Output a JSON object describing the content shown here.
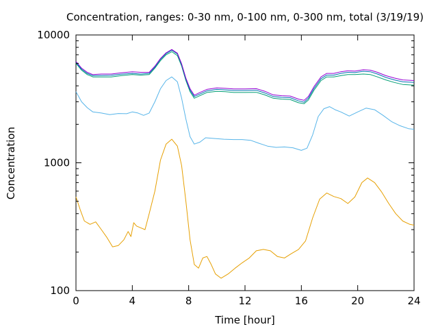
{
  "chart_data": {
    "type": "line",
    "title": "Concentration, ranges: 0-30 nm, 0-100 nm, 0-300 nm, total (3/19/19)",
    "xlabel": "Time [hour]",
    "ylabel": "Concentration",
    "xlim": [
      0,
      24
    ],
    "ylim": [
      100,
      10000
    ],
    "yscale": "log",
    "grid": false,
    "legend": "none",
    "x_ticks": [
      0,
      4,
      8,
      12,
      16,
      20,
      24
    ],
    "x_tick_labels": [
      "0",
      "4",
      "8",
      "12",
      "16",
      "20",
      "24"
    ],
    "y_ticks": [
      100,
      1000,
      10000
    ],
    "y_tick_labels": [
      "100",
      "1000",
      "10000"
    ],
    "series": [
      {
        "color": "#e69f00",
        "points": [
          [
            0,
            540
          ],
          [
            0.3,
            430
          ],
          [
            0.6,
            350
          ],
          [
            1,
            330
          ],
          [
            1.4,
            345
          ],
          [
            1.8,
            300
          ],
          [
            2.2,
            260
          ],
          [
            2.6,
            220
          ],
          [
            3,
            225
          ],
          [
            3.4,
            250
          ],
          [
            3.7,
            290
          ],
          [
            3.9,
            265
          ],
          [
            4.1,
            340
          ],
          [
            4.3,
            320
          ],
          [
            4.6,
            310
          ],
          [
            4.9,
            300
          ],
          [
            5.2,
            400
          ],
          [
            5.6,
            600
          ],
          [
            6,
            1050
          ],
          [
            6.4,
            1400
          ],
          [
            6.8,
            1530
          ],
          [
            7.2,
            1350
          ],
          [
            7.5,
            950
          ],
          [
            7.8,
            500
          ],
          [
            8.1,
            250
          ],
          [
            8.4,
            160
          ],
          [
            8.7,
            150
          ],
          [
            9,
            180
          ],
          [
            9.3,
            185
          ],
          [
            9.6,
            160
          ],
          [
            9.9,
            135
          ],
          [
            10.3,
            125
          ],
          [
            10.8,
            135
          ],
          [
            11.3,
            150
          ],
          [
            11.8,
            165
          ],
          [
            12.3,
            180
          ],
          [
            12.8,
            205
          ],
          [
            13.3,
            210
          ],
          [
            13.8,
            205
          ],
          [
            14.3,
            185
          ],
          [
            14.8,
            180
          ],
          [
            15.3,
            195
          ],
          [
            15.8,
            210
          ],
          [
            16.3,
            245
          ],
          [
            16.8,
            370
          ],
          [
            17.3,
            520
          ],
          [
            17.8,
            580
          ],
          [
            18.3,
            545
          ],
          [
            18.8,
            525
          ],
          [
            19.3,
            480
          ],
          [
            19.8,
            540
          ],
          [
            20.3,
            700
          ],
          [
            20.7,
            760
          ],
          [
            21.2,
            700
          ],
          [
            21.7,
            590
          ],
          [
            22.2,
            480
          ],
          [
            22.7,
            400
          ],
          [
            23.2,
            350
          ],
          [
            23.7,
            330
          ],
          [
            24,
            325
          ]
        ]
      },
      {
        "color": "#56b4e9",
        "points": [
          [
            0,
            3600
          ],
          [
            0.4,
            3000
          ],
          [
            0.8,
            2700
          ],
          [
            1.2,
            2500
          ],
          [
            1.8,
            2450
          ],
          [
            2.4,
            2380
          ],
          [
            3,
            2430
          ],
          [
            3.6,
            2420
          ],
          [
            4,
            2500
          ],
          [
            4.4,
            2450
          ],
          [
            4.8,
            2350
          ],
          [
            5.2,
            2450
          ],
          [
            5.6,
            3000
          ],
          [
            6,
            3800
          ],
          [
            6.4,
            4400
          ],
          [
            6.8,
            4700
          ],
          [
            7.2,
            4300
          ],
          [
            7.5,
            3200
          ],
          [
            7.8,
            2200
          ],
          [
            8.1,
            1600
          ],
          [
            8.4,
            1400
          ],
          [
            8.8,
            1450
          ],
          [
            9.2,
            1570
          ],
          [
            9.8,
            1550
          ],
          [
            10.5,
            1530
          ],
          [
            11.2,
            1520
          ],
          [
            11.8,
            1520
          ],
          [
            12.4,
            1500
          ],
          [
            13,
            1420
          ],
          [
            13.6,
            1350
          ],
          [
            14.2,
            1320
          ],
          [
            14.8,
            1330
          ],
          [
            15.4,
            1310
          ],
          [
            16,
            1250
          ],
          [
            16.4,
            1300
          ],
          [
            16.8,
            1650
          ],
          [
            17.2,
            2300
          ],
          [
            17.6,
            2650
          ],
          [
            18,
            2750
          ],
          [
            18.4,
            2600
          ],
          [
            18.8,
            2500
          ],
          [
            19.4,
            2320
          ],
          [
            20,
            2500
          ],
          [
            20.6,
            2680
          ],
          [
            21.2,
            2600
          ],
          [
            21.8,
            2350
          ],
          [
            22.4,
            2100
          ],
          [
            23,
            1950
          ],
          [
            23.6,
            1850
          ],
          [
            24,
            1830
          ]
        ]
      },
      {
        "color": "#009e73",
        "points": [
          [
            0,
            6000
          ],
          [
            0.4,
            5300
          ],
          [
            0.8,
            4900
          ],
          [
            1.2,
            4700
          ],
          [
            1.8,
            4700
          ],
          [
            2.5,
            4700
          ],
          [
            3.2,
            4800
          ],
          [
            4,
            4900
          ],
          [
            4.6,
            4850
          ],
          [
            5.2,
            4900
          ],
          [
            5.6,
            5500
          ],
          [
            6,
            6300
          ],
          [
            6.4,
            7000
          ],
          [
            6.8,
            7400
          ],
          [
            7.2,
            6900
          ],
          [
            7.5,
            5700
          ],
          [
            7.8,
            4400
          ],
          [
            8.1,
            3600
          ],
          [
            8.4,
            3200
          ],
          [
            8.8,
            3350
          ],
          [
            9.3,
            3550
          ],
          [
            10,
            3620
          ],
          [
            10.6,
            3600
          ],
          [
            11.2,
            3550
          ],
          [
            12,
            3550
          ],
          [
            12.8,
            3560
          ],
          [
            13.4,
            3400
          ],
          [
            14,
            3200
          ],
          [
            14.6,
            3150
          ],
          [
            15.2,
            3130
          ],
          [
            15.8,
            2950
          ],
          [
            16.2,
            2900
          ],
          [
            16.5,
            3100
          ],
          [
            16.9,
            3700
          ],
          [
            17.4,
            4400
          ],
          [
            17.8,
            4700
          ],
          [
            18.3,
            4700
          ],
          [
            18.8,
            4800
          ],
          [
            19.3,
            4900
          ],
          [
            19.8,
            4900
          ],
          [
            20.4,
            4950
          ],
          [
            20.9,
            4900
          ],
          [
            21.4,
            4700
          ],
          [
            22,
            4450
          ],
          [
            22.6,
            4250
          ],
          [
            23.2,
            4100
          ],
          [
            24,
            4050
          ]
        ]
      },
      {
        "color": "#0072b2",
        "points": [
          [
            0,
            6100
          ],
          [
            0.4,
            5400
          ],
          [
            0.8,
            5000
          ],
          [
            1.2,
            4800
          ],
          [
            1.8,
            4820
          ],
          [
            2.5,
            4830
          ],
          [
            3.2,
            4930
          ],
          [
            4,
            5000
          ],
          [
            4.6,
            4950
          ],
          [
            5.2,
            5000
          ],
          [
            5.6,
            5600
          ],
          [
            6,
            6450
          ],
          [
            6.4,
            7150
          ],
          [
            6.8,
            7600
          ],
          [
            7.2,
            7100
          ],
          [
            7.5,
            5850
          ],
          [
            7.8,
            4500
          ],
          [
            8.1,
            3700
          ],
          [
            8.4,
            3300
          ],
          [
            8.8,
            3450
          ],
          [
            9.3,
            3650
          ],
          [
            10,
            3750
          ],
          [
            10.6,
            3720
          ],
          [
            11.2,
            3680
          ],
          [
            12,
            3680
          ],
          [
            12.8,
            3690
          ],
          [
            13.4,
            3520
          ],
          [
            14,
            3300
          ],
          [
            14.6,
            3250
          ],
          [
            15.2,
            3230
          ],
          [
            15.8,
            3050
          ],
          [
            16.2,
            2980
          ],
          [
            16.5,
            3200
          ],
          [
            16.9,
            3820
          ],
          [
            17.4,
            4550
          ],
          [
            17.8,
            4850
          ],
          [
            18.3,
            4850
          ],
          [
            18.8,
            5000
          ],
          [
            19.3,
            5100
          ],
          [
            19.8,
            5080
          ],
          [
            20.4,
            5200
          ],
          [
            20.9,
            5150
          ],
          [
            21.4,
            4950
          ],
          [
            22,
            4650
          ],
          [
            22.6,
            4450
          ],
          [
            23.2,
            4300
          ],
          [
            24,
            4250
          ]
        ]
      },
      {
        "color": "#9400d3",
        "points": [
          [
            0,
            6200
          ],
          [
            0.4,
            5500
          ],
          [
            0.8,
            5100
          ],
          [
            1.2,
            4900
          ],
          [
            1.8,
            4950
          ],
          [
            2.5,
            4950
          ],
          [
            3.2,
            5050
          ],
          [
            4,
            5150
          ],
          [
            4.6,
            5100
          ],
          [
            5.2,
            5100
          ],
          [
            5.6,
            5700
          ],
          [
            6,
            6550
          ],
          [
            6.4,
            7250
          ],
          [
            6.8,
            7700
          ],
          [
            7.2,
            7200
          ],
          [
            7.5,
            5950
          ],
          [
            7.8,
            4600
          ],
          [
            8.1,
            3800
          ],
          [
            8.4,
            3380
          ],
          [
            8.8,
            3550
          ],
          [
            9.3,
            3750
          ],
          [
            10,
            3850
          ],
          [
            10.6,
            3820
          ],
          [
            11.2,
            3780
          ],
          [
            12,
            3780
          ],
          [
            12.8,
            3800
          ],
          [
            13.4,
            3630
          ],
          [
            14,
            3400
          ],
          [
            14.6,
            3350
          ],
          [
            15.2,
            3330
          ],
          [
            15.8,
            3150
          ],
          [
            16.2,
            3080
          ],
          [
            16.5,
            3300
          ],
          [
            16.9,
            3950
          ],
          [
            17.4,
            4700
          ],
          [
            17.8,
            5000
          ],
          [
            18.3,
            5000
          ],
          [
            18.8,
            5150
          ],
          [
            19.3,
            5250
          ],
          [
            19.8,
            5220
          ],
          [
            20.4,
            5350
          ],
          [
            20.9,
            5300
          ],
          [
            21.4,
            5100
          ],
          [
            22,
            4800
          ],
          [
            22.6,
            4600
          ],
          [
            23.2,
            4450
          ],
          [
            24,
            4400
          ]
        ]
      }
    ]
  }
}
